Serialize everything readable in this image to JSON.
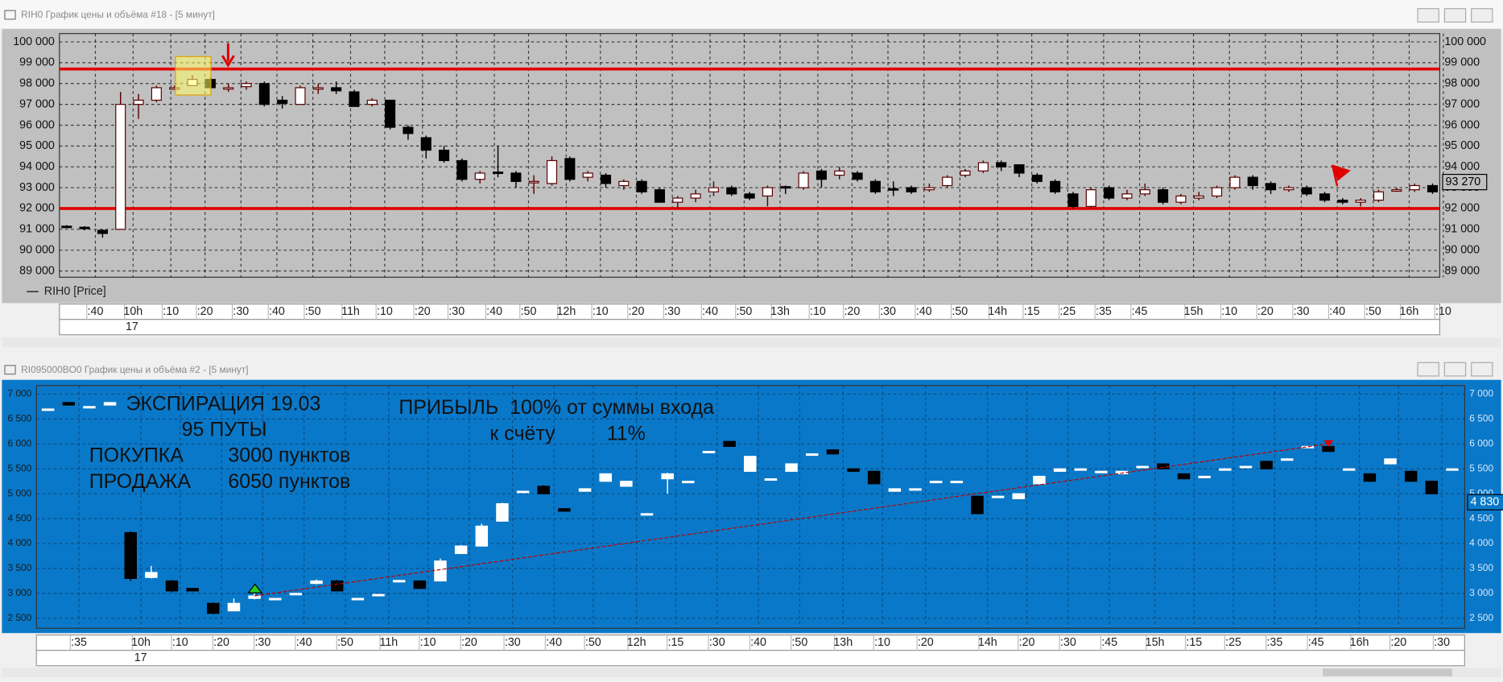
{
  "windows": [
    {
      "title": "RIH0 График цены и объёма #18 - [5 минут]"
    },
    {
      "title": "RI095000BO0 График цены и объёма #2 - [5 минут]"
    }
  ],
  "chart_data": [
    {
      "type": "candlestick",
      "name": "RIH0 [Price]",
      "background": "#c0c0c0",
      "up_color": "#ffffff",
      "down_color": "#000000",
      "outline_color": "#5a0000",
      "grid": true,
      "open": [
        91150,
        91100,
        90950,
        91000,
        97000,
        97200,
        97800,
        97900,
        98200,
        97800,
        97850,
        98000,
        97200,
        97000,
        97800,
        97800,
        97600,
        97000,
        97200,
        95900,
        95400,
        94800,
        94300,
        93400,
        93750,
        93700,
        93300,
        93200,
        94400,
        93500,
        93600,
        93100,
        93300,
        92900,
        92300,
        92500,
        92800,
        93000,
        92700,
        92600,
        93050,
        93000,
        93800,
        93600,
        93700,
        93300,
        92950,
        93000,
        92900,
        93100,
        93600,
        93800,
        94200,
        94100,
        93600,
        93300,
        92700,
        92100,
        93000,
        92500,
        92700,
        92900,
        92300,
        92500,
        92600,
        93000,
        93500,
        93200,
        92900,
        93000,
        92700,
        92400,
        92300,
        92400,
        92900,
        92900,
        93100
      ],
      "high": [
        91200,
        91150,
        91000,
        97600,
        97500,
        97900,
        97900,
        98400,
        98300,
        98000,
        98100,
        98100,
        97400,
        97900,
        98000,
        98100,
        97700,
        97300,
        97200,
        96000,
        95500,
        95000,
        94400,
        93800,
        95000,
        93800,
        93600,
        94500,
        94500,
        93800,
        93700,
        93400,
        93400,
        93000,
        92600,
        92900,
        93300,
        93100,
        92800,
        93100,
        93100,
        93800,
        93900,
        94000,
        93800,
        93400,
        93300,
        93100,
        93200,
        93600,
        93900,
        94300,
        94300,
        94100,
        93700,
        93400,
        92800,
        93000,
        93100,
        92900,
        93200,
        93000,
        92700,
        92800,
        93100,
        93600,
        93600,
        93300,
        93100,
        93100,
        92800,
        92500,
        92500,
        92900,
        93000,
        93200,
        93200
      ],
      "low": [
        91050,
        90950,
        90600,
        91000,
        96300,
        97100,
        97700,
        97900,
        97800,
        97600,
        97700,
        96900,
        96800,
        97000,
        97500,
        97500,
        96900,
        96900,
        95800,
        95300,
        94400,
        94200,
        93300,
        93200,
        93500,
        93000,
        92700,
        93100,
        93300,
        93300,
        93000,
        92900,
        92700,
        92300,
        92000,
        92300,
        92600,
        92600,
        92400,
        92100,
        92700,
        92900,
        93000,
        93400,
        93300,
        92700,
        92600,
        92700,
        92800,
        93000,
        93500,
        93700,
        93800,
        93500,
        93200,
        92700,
        92000,
        92000,
        92400,
        92400,
        92600,
        92200,
        92200,
        92400,
        92500,
        92900,
        92900,
        92700,
        92800,
        92600,
        92300,
        92200,
        92100,
        92300,
        92800,
        92800,
        92700
      ],
      "close": [
        91100,
        91050,
        90800,
        97000,
        97200,
        97800,
        97800,
        98200,
        97800,
        97800,
        98000,
        97000,
        97050,
        97800,
        97800,
        97650,
        96900,
        97200,
        95900,
        95600,
        94800,
        94300,
        93400,
        93700,
        93700,
        93300,
        93300,
        94300,
        93400,
        93700,
        93200,
        93300,
        92800,
        92300,
        92500,
        92700,
        93000,
        92700,
        92500,
        93000,
        93000,
        93700,
        93400,
        93800,
        93400,
        92800,
        92900,
        92800,
        93000,
        93500,
        93800,
        94200,
        94000,
        93700,
        93300,
        92800,
        92100,
        92900,
        92500,
        92700,
        92900,
        92300,
        92600,
        92600,
        93000,
        93500,
        93100,
        92900,
        93000,
        92700,
        92400,
        92300,
        92400,
        92800,
        92900,
        93100,
        92800
      ],
      "xlim": [
        -0.4,
        76.4
      ],
      "ylim": [
        88700,
        100400
      ],
      "yticks": [
        {
          "value": 100000,
          "label": "100 000"
        },
        {
          "value": 99000,
          "label": "99 000"
        },
        {
          "value": 98000,
          "label": "98 000"
        },
        {
          "value": 97000,
          "label": "97 000"
        },
        {
          "value": 96000,
          "label": "96 000"
        },
        {
          "value": 95000,
          "label": "95 000"
        },
        {
          "value": 94000,
          "label": "94 000"
        },
        {
          "value": 93000,
          "label": "93 000"
        },
        {
          "value": 92000,
          "label": "92 000"
        },
        {
          "value": 91000,
          "label": "91 000"
        },
        {
          "value": 90000,
          "label": "90 000"
        },
        {
          "value": 89000,
          "label": "89 000"
        }
      ],
      "xticks": [
        {
          "value": 1.6,
          "label": ":40"
        },
        {
          "value": 3.7,
          "label": "10h"
        },
        {
          "value": 5.8,
          "label": ":10"
        },
        {
          "value": 7.7,
          "label": ":20"
        },
        {
          "value": 9.7,
          "label": ":30"
        },
        {
          "value": 11.7,
          "label": ":40"
        },
        {
          "value": 13.7,
          "label": ":50"
        },
        {
          "value": 15.8,
          "label": "11h"
        },
        {
          "value": 17.7,
          "label": ":10"
        },
        {
          "value": 19.8,
          "label": ":20"
        },
        {
          "value": 21.7,
          "label": ":30"
        },
        {
          "value": 23.8,
          "label": ":40"
        },
        {
          "value": 25.7,
          "label": ":50"
        },
        {
          "value": 27.8,
          "label": "12h"
        },
        {
          "value": 29.7,
          "label": ":10"
        },
        {
          "value": 31.7,
          "label": ":20"
        },
        {
          "value": 33.7,
          "label": ":30"
        },
        {
          "value": 35.8,
          "label": ":40"
        },
        {
          "value": 37.7,
          "label": ":50"
        },
        {
          "value": 39.7,
          "label": "13h"
        },
        {
          "value": 41.8,
          "label": ":10"
        },
        {
          "value": 43.7,
          "label": ":20"
        },
        {
          "value": 45.7,
          "label": ":30"
        },
        {
          "value": 47.7,
          "label": ":40"
        },
        {
          "value": 49.7,
          "label": ":50"
        },
        {
          "value": 51.8,
          "label": "14h"
        },
        {
          "value": 53.7,
          "label": ":15"
        },
        {
          "value": 55.7,
          "label": ":25"
        },
        {
          "value": 57.7,
          "label": ":35"
        },
        {
          "value": 59.7,
          "label": ":45"
        },
        {
          "value": 62.7,
          "label": "15h"
        },
        {
          "value": 64.7,
          "label": ":10"
        },
        {
          "value": 66.7,
          "label": ":20"
        },
        {
          "value": 68.7,
          "label": ":30"
        },
        {
          "value": 70.7,
          "label": ":40"
        },
        {
          "value": 72.7,
          "label": ":50"
        },
        {
          "value": 74.7,
          "label": "16h"
        },
        {
          "value": 76.6,
          "label": ":10"
        }
      ],
      "date": "17",
      "hlines": [
        98700,
        92000
      ],
      "hline_color": "#e00000",
      "last": {
        "value": 93270,
        "label": "93 270"
      }
    },
    {
      "type": "candlestick",
      "background": "#0a78c8",
      "up_color": "#ffffff",
      "down_color": "#000000",
      "outline_color": "#ffffff",
      "grid": true,
      "open": [
        6700,
        6830,
        6750,
        6780,
        4220,
        3320,
        3250,
        3100,
        2800,
        2650,
        2900,
        2900,
        3000,
        3200,
        3250,
        2900,
        2980,
        3230,
        3250,
        3250,
        3800,
        3950,
        4450,
        5050,
        5150,
        4700,
        5050,
        5250,
        5150,
        4600,
        5300,
        5250,
        5850,
        6050,
        5450,
        5300,
        5450,
        5800,
        5880,
        5500,
        5450,
        5050,
        5100,
        5250,
        5250,
        4950,
        4950,
        4900,
        5200,
        5450,
        5500,
        5450,
        5400,
        5550,
        5600,
        5400,
        5350,
        5500,
        5550,
        5650,
        5700,
        5950,
        5950,
        5500,
        5400,
        5600,
        5450,
        5250,
        5500
      ],
      "high": [
        6710,
        6840,
        6760,
        6840,
        4250,
        3550,
        3270,
        3110,
        2820,
        2900,
        3000,
        2910,
        3010,
        3280,
        3270,
        2910,
        2990,
        3270,
        3260,
        3700,
        3970,
        4400,
        4820,
        5060,
        5170,
        4710,
        5110,
        5410,
        5260,
        4610,
        5420,
        5260,
        5860,
        6060,
        5760,
        5310,
        5610,
        5810,
        5890,
        5510,
        5460,
        5110,
        5110,
        5260,
        5260,
        4960,
        4960,
        5010,
        5360,
        5510,
        5510,
        5460,
        5460,
        5560,
        5610,
        5410,
        5360,
        5510,
        5560,
        5660,
        5710,
        5960,
        5960,
        5510,
        5410,
        5710,
        5460,
        5260,
        5510
      ],
      "low": [
        6690,
        6770,
        6740,
        6770,
        3250,
        3300,
        3020,
        3040,
        2580,
        2640,
        2880,
        2890,
        2990,
        3180,
        3040,
        2890,
        2970,
        3220,
        3090,
        3240,
        3790,
        3940,
        4440,
        5040,
        4990,
        4640,
        5040,
        5240,
        5140,
        4590,
        5000,
        5240,
        5840,
        5940,
        5440,
        5290,
        5440,
        5790,
        5790,
        5440,
        5190,
        5040,
        5090,
        5240,
        5240,
        4590,
        4940,
        4890,
        5190,
        5440,
        5490,
        5440,
        5390,
        5540,
        5490,
        5290,
        5340,
        5490,
        5540,
        5490,
        5690,
        5940,
        5840,
        5490,
        5240,
        5590,
        5240,
        4990,
        5490
      ],
      "close": [
        6700,
        6780,
        6750,
        6830,
        3300,
        3420,
        3050,
        3050,
        2600,
        2800,
        2950,
        2900,
        3000,
        3250,
        3050,
        2900,
        2980,
        3260,
        3100,
        3650,
        3950,
        4350,
        4800,
        5050,
        5000,
        4650,
        5100,
        5400,
        5250,
        4600,
        5400,
        5250,
        5850,
        5950,
        5750,
        5300,
        5600,
        5800,
        5800,
        5450,
        5200,
        5100,
        5100,
        5250,
        5250,
        4600,
        4950,
        5000,
        5350,
        5500,
        5500,
        5450,
        5450,
        5550,
        5500,
        5300,
        5350,
        5500,
        5550,
        5500,
        5700,
        5950,
        5850,
        5500,
        5250,
        5700,
        5250,
        5000,
        5500
      ],
      "xlim": [
        -0.56,
        68.6
      ],
      "ylim": [
        2300,
        7170
      ],
      "yticks": [
        {
          "value": 7000,
          "label": "7 000"
        },
        {
          "value": 6500,
          "label": "6 500"
        },
        {
          "value": 6000,
          "label": "6 000"
        },
        {
          "value": 5500,
          "label": "5 500"
        },
        {
          "value": 5000,
          "label": "5 000"
        },
        {
          "value": 4500,
          "label": "4 500"
        },
        {
          "value": 4000,
          "label": "4 000"
        },
        {
          "value": 3500,
          "label": "3 500"
        },
        {
          "value": 3000,
          "label": "3 000"
        },
        {
          "value": 2500,
          "label": "2 500"
        }
      ],
      "xticks": [
        {
          "value": 1.5,
          "label": ":35"
        },
        {
          "value": 4.5,
          "label": "10h"
        },
        {
          "value": 6.4,
          "label": ":10"
        },
        {
          "value": 8.4,
          "label": ":20"
        },
        {
          "value": 10.4,
          "label": ":30"
        },
        {
          "value": 12.4,
          "label": ":40"
        },
        {
          "value": 14.4,
          "label": ":50"
        },
        {
          "value": 16.5,
          "label": "11h"
        },
        {
          "value": 18.4,
          "label": ":10"
        },
        {
          "value": 20.4,
          "label": ":20"
        },
        {
          "value": 22.5,
          "label": ":30"
        },
        {
          "value": 24.5,
          "label": ":40"
        },
        {
          "value": 26.4,
          "label": ":50"
        },
        {
          "value": 28.5,
          "label": "12h"
        },
        {
          "value": 30.4,
          "label": ":15"
        },
        {
          "value": 32.4,
          "label": ":30"
        },
        {
          "value": 34.4,
          "label": ":40"
        },
        {
          "value": 36.4,
          "label": ":50"
        },
        {
          "value": 38.5,
          "label": "13h"
        },
        {
          "value": 40.4,
          "label": ":10"
        },
        {
          "value": 42.5,
          "label": ":20"
        },
        {
          "value": 45.5,
          "label": "14h"
        },
        {
          "value": 47.4,
          "label": ":20"
        },
        {
          "value": 49.4,
          "label": ":30"
        },
        {
          "value": 51.4,
          "label": ":45"
        },
        {
          "value": 53.6,
          "label": "15h"
        },
        {
          "value": 55.5,
          "label": ":15"
        },
        {
          "value": 57.4,
          "label": ":25"
        },
        {
          "value": 59.4,
          "label": ":35"
        },
        {
          "value": 61.4,
          "label": ":45"
        },
        {
          "value": 63.5,
          "label": "16h"
        },
        {
          "value": 65.4,
          "label": ":20"
        },
        {
          "value": 67.5,
          "label": ":30"
        }
      ],
      "date": "17",
      "trendline": {
        "x": [
          10,
          62
        ],
        "y": [
          2950,
          6000
        ],
        "color": "#c00000"
      },
      "last": {
        "value": 4830,
        "label": "4 830"
      },
      "annotations": [
        "ЭКСПИРАЦИЯ 19.03",
        "95 ПУТЫ",
        "ПОКУПКА",
        "3000 пунктов",
        "ПРОДАЖА",
        "6050 пунктов",
        "ПРИБЫЛЬ  100% от суммы входа",
        "к счёту",
        "11%"
      ]
    }
  ]
}
